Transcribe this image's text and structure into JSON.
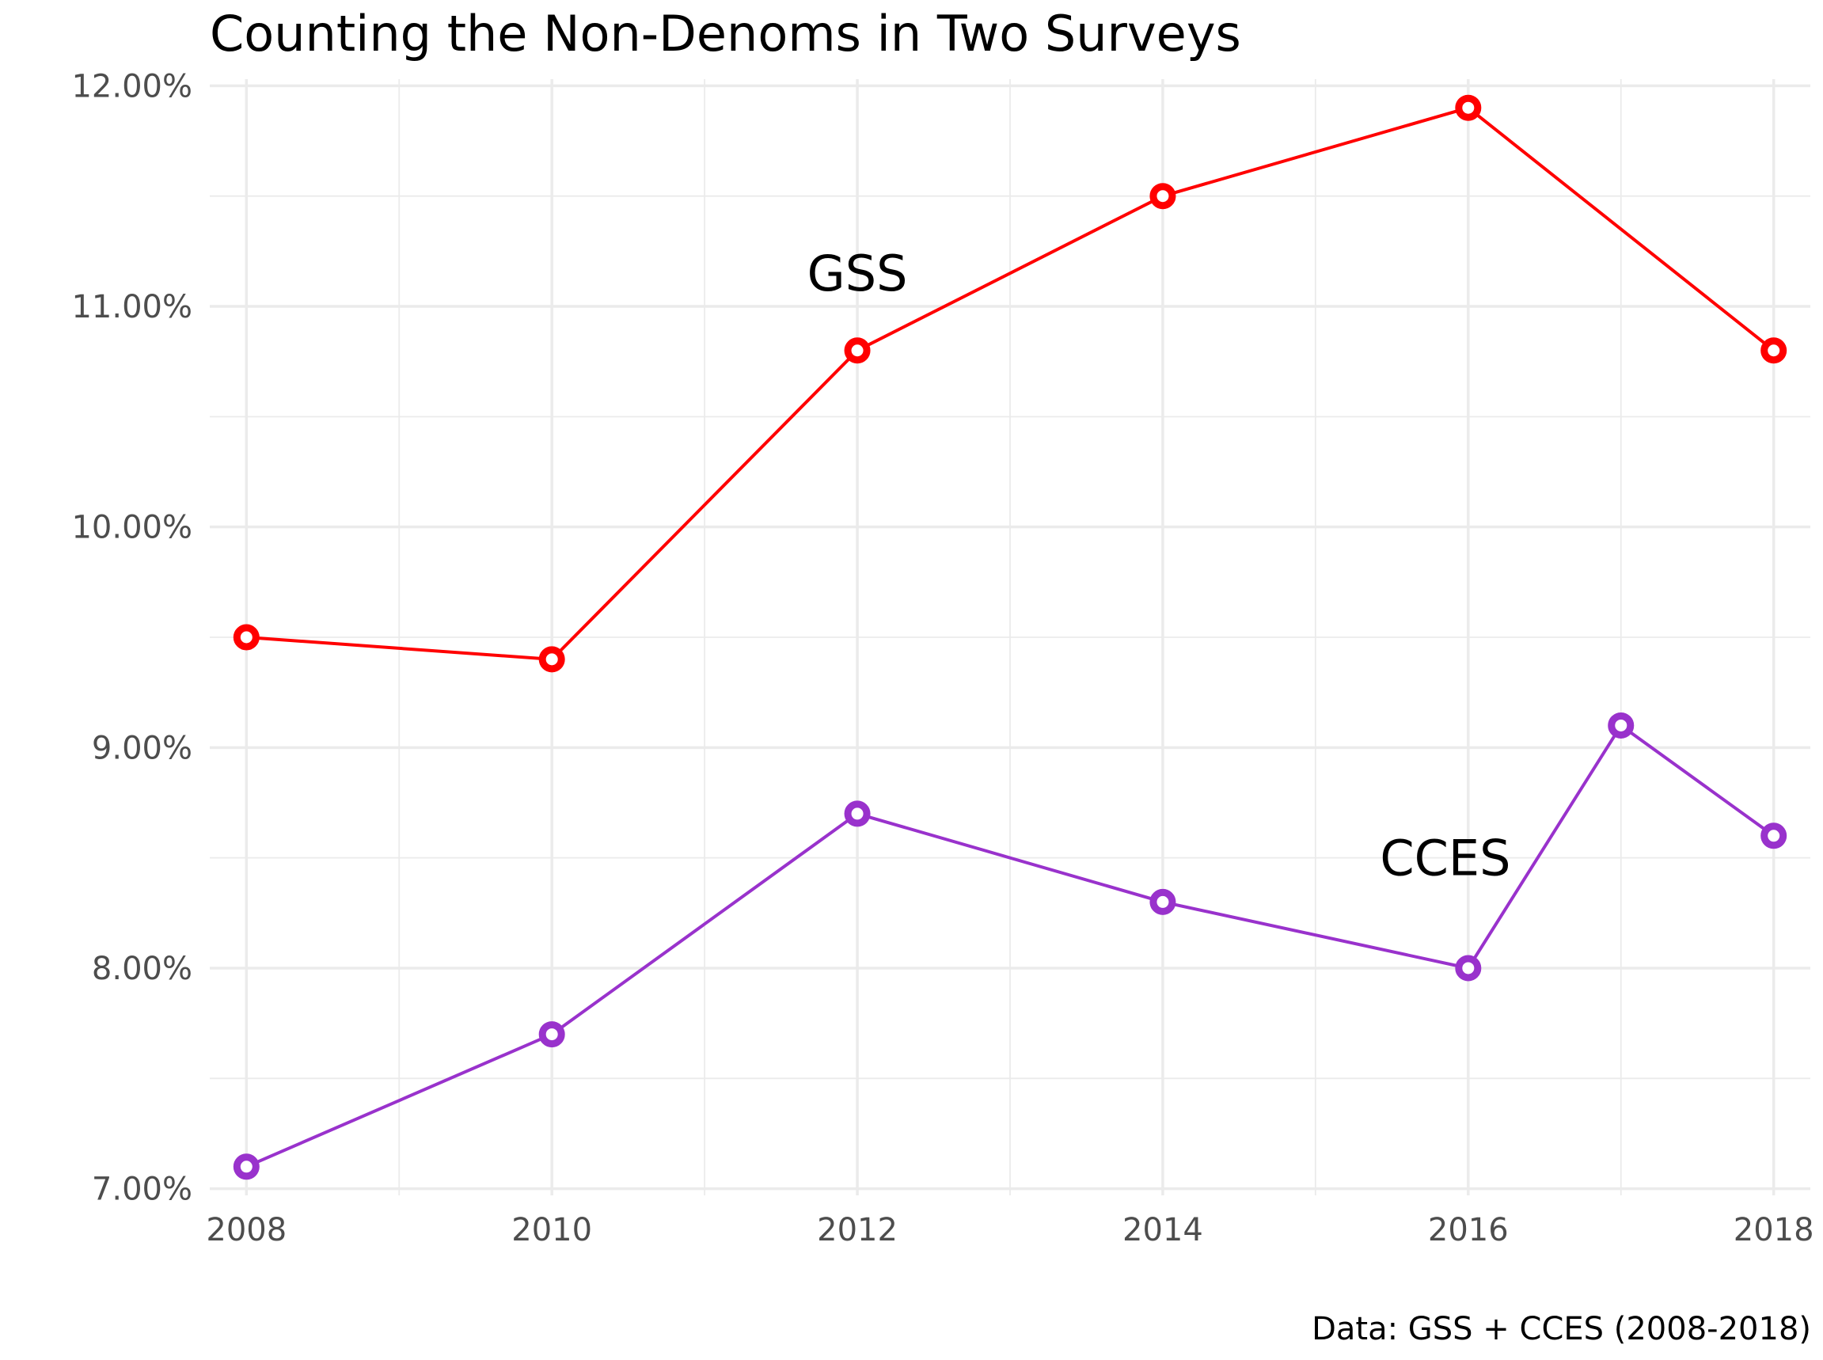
{
  "chart_data": {
    "type": "line",
    "title": "Counting the Non-Denoms in Two Surveys",
    "caption": "Data: GSS + CCES (2008-2018)",
    "xlabel": "",
    "ylabel": "",
    "xlim": [
      2007.76,
      2018.24
    ],
    "ylim": [
      6.97,
      12.03
    ],
    "x_ticks": [
      2008,
      2010,
      2012,
      2014,
      2016,
      2018
    ],
    "y_ticks": [
      7,
      8,
      9,
      10,
      11,
      12
    ],
    "y_tick_labels": [
      "7.00%",
      "8.00%",
      "9.00%",
      "10.00%",
      "11.00%",
      "12.00%"
    ],
    "grid": true,
    "legend": "none",
    "series": [
      {
        "name": "GSS",
        "color": "#ff0000",
        "label_anchor": {
          "x": 2012,
          "y": 11.15
        },
        "points": [
          {
            "x": 2008,
            "y": 9.5
          },
          {
            "x": 2010,
            "y": 9.4
          },
          {
            "x": 2012,
            "y": 10.8
          },
          {
            "x": 2014,
            "y": 11.5
          },
          {
            "x": 2016,
            "y": 11.9
          },
          {
            "x": 2018,
            "y": 10.8
          }
        ]
      },
      {
        "name": "CCES",
        "color": "#9932cc",
        "label_anchor": {
          "x": 2015.85,
          "y": 8.5
        },
        "points": [
          {
            "x": 2008,
            "y": 7.1
          },
          {
            "x": 2010,
            "y": 7.7
          },
          {
            "x": 2012,
            "y": 8.7
          },
          {
            "x": 2014,
            "y": 8.3
          },
          {
            "x": 2016,
            "y": 8.0
          },
          {
            "x": 2017,
            "y": 9.1
          },
          {
            "x": 2018,
            "y": 8.6
          }
        ]
      }
    ]
  }
}
